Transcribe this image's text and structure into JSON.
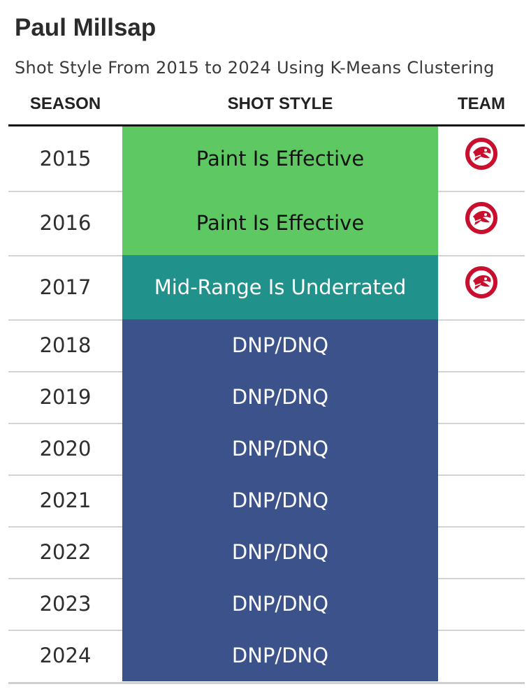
{
  "title": "Paul Millsap",
  "subtitle": "Shot Style From 2015 to 2024 Using K-Means Clustering",
  "columns": {
    "season": "SEASON",
    "shot_style": "SHOT STYLE",
    "team": "TEAM"
  },
  "style_colors": {
    "Paint Is Effective": {
      "bg": "#5ec962",
      "fg": "#111111"
    },
    "Mid-Range Is Underrated": {
      "bg": "#21918c",
      "fg": "#ffffff"
    },
    "DNP/DNQ": {
      "bg": "#3b528b",
      "fg": "#ffffff"
    }
  },
  "team_logo_color": "#c8102e",
  "chart_data": {
    "type": "table",
    "title": "Paul Millsap",
    "subtitle": "Shot Style From 2015 to 2024 Using K-Means Clustering",
    "columns": [
      "SEASON",
      "SHOT STYLE",
      "TEAM"
    ],
    "rows": [
      {
        "season": "2015",
        "shot_style": "Paint Is Effective",
        "team": "hawks-logo-icon"
      },
      {
        "season": "2016",
        "shot_style": "Paint Is Effective",
        "team": "hawks-logo-icon"
      },
      {
        "season": "2017",
        "shot_style": "Mid-Range Is Underrated",
        "team": "hawks-logo-icon"
      },
      {
        "season": "2018",
        "shot_style": "DNP/DNQ",
        "team": ""
      },
      {
        "season": "2019",
        "shot_style": "DNP/DNQ",
        "team": ""
      },
      {
        "season": "2020",
        "shot_style": "DNP/DNQ",
        "team": ""
      },
      {
        "season": "2021",
        "shot_style": "DNP/DNQ",
        "team": ""
      },
      {
        "season": "2022",
        "shot_style": "DNP/DNQ",
        "team": ""
      },
      {
        "season": "2023",
        "shot_style": "DNP/DNQ",
        "team": ""
      },
      {
        "season": "2024",
        "shot_style": "DNP/DNQ",
        "team": ""
      }
    ]
  }
}
